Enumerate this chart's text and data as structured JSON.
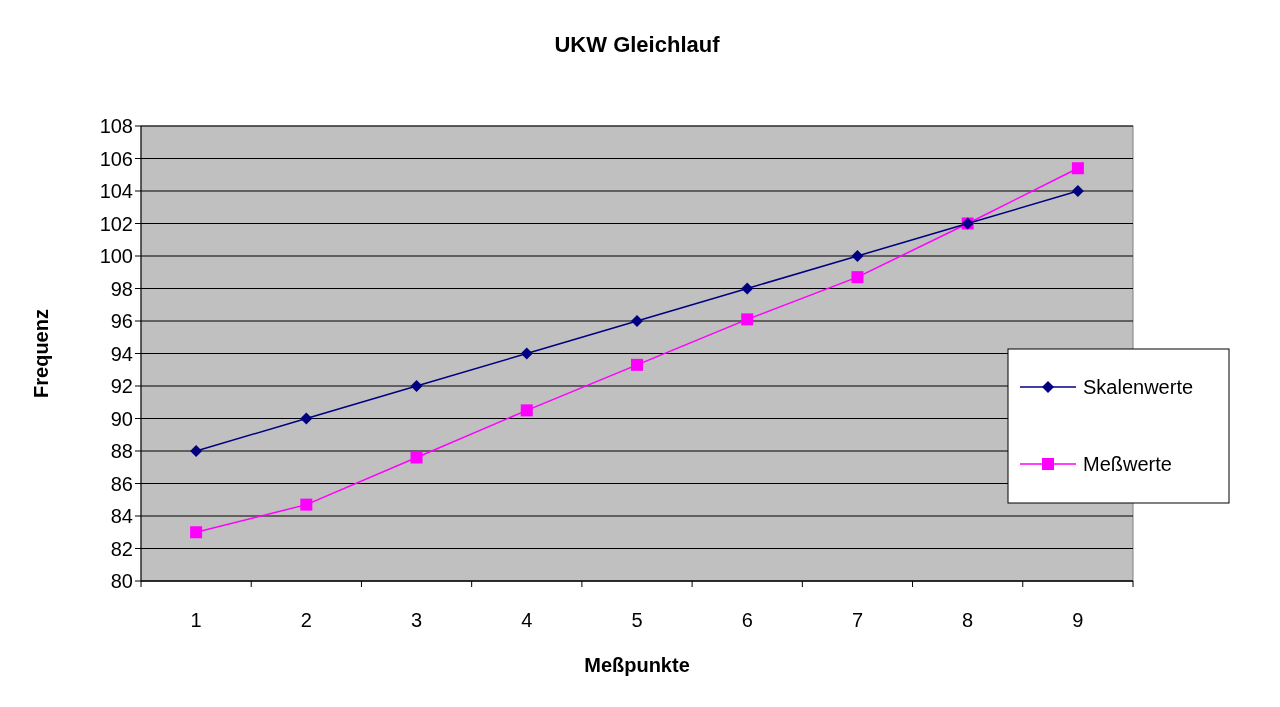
{
  "chart_data": {
    "type": "line",
    "title": "UKW Gleichlauf",
    "xlabel": "Meßpunkte",
    "ylabel": "Frequenz",
    "categories": [
      "1",
      "2",
      "3",
      "4",
      "5",
      "6",
      "7",
      "8",
      "9"
    ],
    "series": [
      {
        "name": "Skalenwerte",
        "color": "#000080",
        "marker": "diamond",
        "values": [
          88,
          90,
          92,
          94,
          96,
          98,
          100,
          102,
          104
        ]
      },
      {
        "name": "Meßwerte",
        "color": "#ff00ff",
        "marker": "square",
        "values": [
          83,
          84.7,
          87.6,
          90.5,
          93.3,
          96.1,
          98.7,
          102,
          105.4
        ]
      }
    ],
    "ylim": [
      80,
      108
    ],
    "yticks": [
      80,
      82,
      84,
      86,
      88,
      90,
      92,
      94,
      96,
      98,
      100,
      102,
      104,
      106,
      108
    ],
    "grid": "y",
    "legend": "right",
    "line_style": "solid"
  }
}
